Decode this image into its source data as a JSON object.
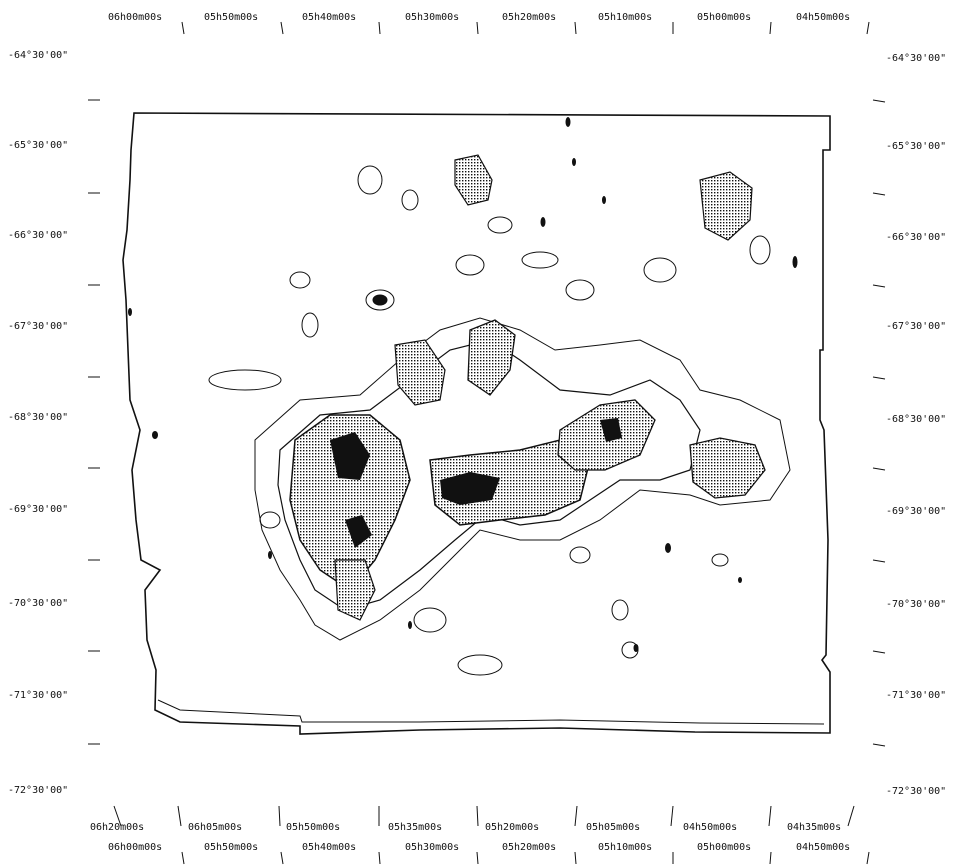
{
  "colors": {
    "ink": "#111111",
    "paper": "#ffffff"
  },
  "map": {
    "top_ra_labels": [
      "06h00m00s",
      "05h50m00s",
      "05h40m00s",
      "05h30m00s",
      "05h20m00s",
      "05h10m00s",
      "05h00m00s",
      "04h50m00s"
    ],
    "lower_ra_labels": [
      "06h20m00s",
      "06h05m00s",
      "05h50m00s",
      "05h35m00s",
      "05h20m00s",
      "05h05m00s",
      "04h50m00s",
      "04h35m00s"
    ],
    "bottom_ra_labels": [
      "06h00m00s",
      "05h50m00s",
      "05h40m00s",
      "05h30m00s",
      "05h20m00s",
      "05h10m00s",
      "05h00m00s",
      "04h50m00s"
    ],
    "dec_labels": [
      "-64°30'00\"",
      "-65°30'00\"",
      "-66°30'00\"",
      "-67°30'00\"",
      "-68°30'00\"",
      "-69°30'00\"",
      "-70°30'00\"",
      "-71°30'00\"",
      "-72°30'00\""
    ]
  }
}
